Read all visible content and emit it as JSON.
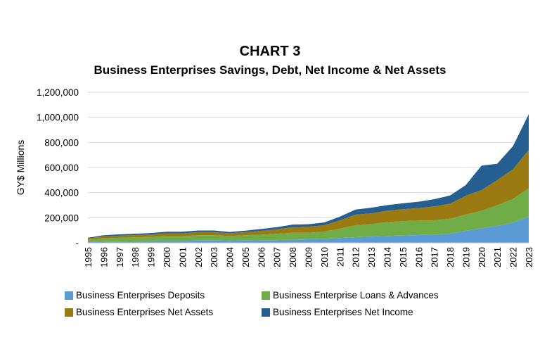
{
  "title": "CHART 3",
  "subtitle": "Business Enterprises Savings, Debt, Net Income & Net Assets",
  "chart_data": {
    "type": "area",
    "stacked": true,
    "ylabel": "GY$ Millions",
    "ylim": [
      0,
      1200000
    ],
    "yticks": [
      "-",
      "200,000",
      "400,000",
      "600,000",
      "800,000",
      "1,000,000",
      "1,200,000"
    ],
    "grid": true,
    "legend_position": "bottom",
    "x": [
      "1995",
      "1996",
      "1997",
      "1998",
      "1999",
      "2000",
      "2001",
      "2002",
      "2003",
      "2004",
      "2005",
      "2006",
      "2007",
      "2008",
      "2009",
      "2010",
      "2011",
      "2012",
      "2013",
      "2014",
      "2015",
      "2016",
      "2017",
      "2018",
      "2019",
      "2020",
      "2021",
      "2022",
      "2023"
    ],
    "series": [
      {
        "name": "Business Enterprises Deposits",
        "color": "#5b9bd5",
        "values": [
          5000,
          9000,
          10000,
          12000,
          13000,
          15000,
          15000,
          18000,
          18000,
          16000,
          18000,
          20000,
          22000,
          25000,
          28000,
          32000,
          38000,
          45000,
          50000,
          55000,
          58000,
          62000,
          65000,
          72000,
          95000,
          115000,
          135000,
          160000,
          210000
        ]
      },
      {
        "name": "Business Enterprise Loans & Advances",
        "color": "#70ad47",
        "values": [
          20000,
          27000,
          30000,
          32000,
          34000,
          38000,
          38000,
          42000,
          42000,
          38000,
          42000,
          45000,
          50000,
          55000,
          52000,
          58000,
          75000,
          95000,
          100000,
          110000,
          115000,
          115000,
          115000,
          120000,
          130000,
          140000,
          165000,
          190000,
          225000
        ]
      },
      {
        "name": "Business Enterprises Net Assets",
        "color": "#9c7a12",
        "values": [
          10000,
          15000,
          17000,
          18000,
          20000,
          22000,
          22000,
          25000,
          25000,
          22000,
          25000,
          30000,
          35000,
          45000,
          48000,
          50000,
          65000,
          85000,
          85000,
          90000,
          95000,
          100000,
          110000,
          120000,
          150000,
          165000,
          200000,
          235000,
          305000
        ]
      },
      {
        "name": "Business Enterprises Net Income",
        "color": "#255e91",
        "values": [
          5000,
          9000,
          10000,
          10000,
          11000,
          13000,
          13000,
          13000,
          13000,
          10000,
          12000,
          15000,
          18000,
          20000,
          20000,
          22000,
          30000,
          40000,
          45000,
          45000,
          47000,
          50000,
          58000,
          65000,
          85000,
          195000,
          130000,
          185000,
          285000
        ]
      }
    ]
  }
}
